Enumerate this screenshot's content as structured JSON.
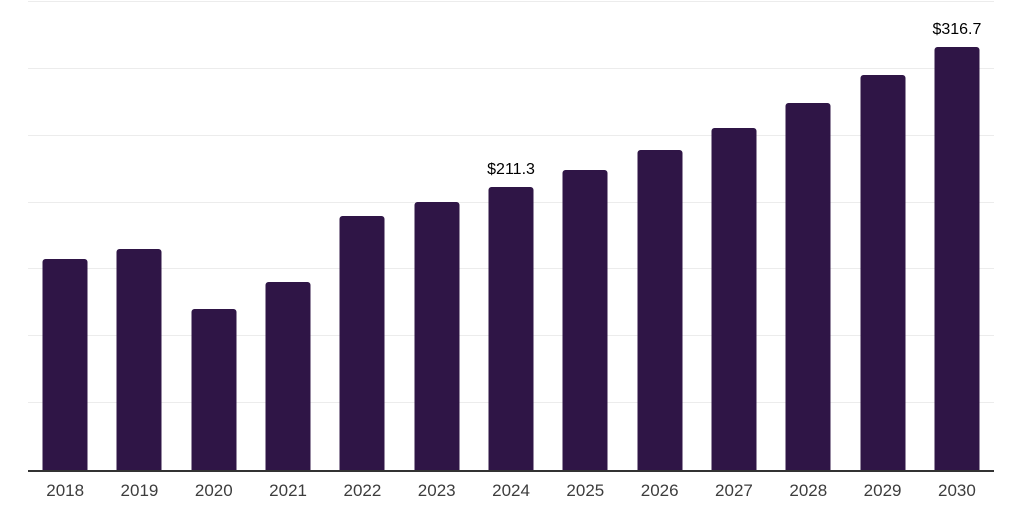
{
  "chart_data": {
    "type": "bar",
    "title": "",
    "xlabel": "",
    "ylabel": "",
    "categories": [
      "2018",
      "2019",
      "2020",
      "2021",
      "2022",
      "2023",
      "2024",
      "2025",
      "2026",
      "2027",
      "2028",
      "2029",
      "2030"
    ],
    "values": [
      157.8,
      165.1,
      120.4,
      140.8,
      190.0,
      200.4,
      211.3,
      224.4,
      239.3,
      256.0,
      274.7,
      295.4,
      316.7
    ],
    "bar_labels": [
      "",
      "",
      "",
      "",
      "",
      "",
      "$211.3",
      "",
      "",
      "",
      "",
      "",
      "$316.7"
    ],
    "ylim": [
      0,
      350
    ],
    "gridline_step": 50,
    "grid": "horizontal-only",
    "y_tick_labels_visible": false,
    "legend_position": "none",
    "colors": {
      "bar": "#2F1546",
      "axis_line": "#333333",
      "gridline": "#ececec",
      "tick_label": "#3d3d3d",
      "value_label": "#000000",
      "background": "#ffffff"
    }
  }
}
